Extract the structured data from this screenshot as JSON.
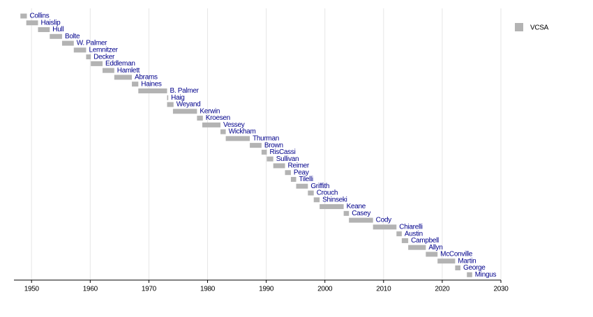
{
  "chart_data": {
    "type": "timeline",
    "categories": [
      "Collins",
      "Haislip",
      "Hull",
      "Bolte",
      "W. Palmer",
      "Lemnitzer",
      "Decker",
      "Eddleman",
      "Hamlett",
      "Abrams",
      "Haines",
      "B. Palmer",
      "Haig",
      "Weyand",
      "Kerwin",
      "Kroesen",
      "Vessey",
      "Wickham",
      "Thurman",
      "Brown",
      "RisCassi",
      "Sullivan",
      "Reimer",
      "Peay",
      "Tilelli",
      "Griffith",
      "Crouch",
      "Shinseki",
      "Keane",
      "Casey",
      "Cody",
      "Chiarelli",
      "Austin",
      "Campbell",
      "Allyn",
      "McConville",
      "Martin",
      "George",
      "Mingus"
    ],
    "series": [
      {
        "name": "VCSA",
        "color": "#b3b3b3",
        "values": [
          [
            1948.1,
            1949.2
          ],
          [
            1949.1,
            1951.1
          ],
          [
            1951.1,
            1953.1
          ],
          [
            1953.1,
            1955.2
          ],
          [
            1955.2,
            1957.2
          ],
          [
            1957.2,
            1959.3
          ],
          [
            1959.3,
            1960.1
          ],
          [
            1960.1,
            1962.1
          ],
          [
            1962.1,
            1964.1
          ],
          [
            1964.1,
            1967.1
          ],
          [
            1967.1,
            1968.2
          ],
          [
            1968.2,
            1973.1
          ],
          [
            1973.1,
            1973.3
          ],
          [
            1973.1,
            1974.2
          ],
          [
            1974.1,
            1978.2
          ],
          [
            1978.2,
            1979.2
          ],
          [
            1979.1,
            1982.2
          ],
          [
            1982.2,
            1983.1
          ],
          [
            1983.1,
            1987.2
          ],
          [
            1987.2,
            1989.2
          ],
          [
            1989.2,
            1990.1
          ],
          [
            1990.1,
            1991.2
          ],
          [
            1991.2,
            1993.2
          ],
          [
            1993.2,
            1994.2
          ],
          [
            1994.2,
            1995.1
          ],
          [
            1995.1,
            1997.1
          ],
          [
            1997.1,
            1998.1
          ],
          [
            1998.1,
            1999.1
          ],
          [
            1999.1,
            2003.2
          ],
          [
            2003.2,
            2004.1
          ],
          [
            2004.1,
            2008.2
          ],
          [
            2008.2,
            2012.2
          ],
          [
            2012.2,
            2013.1
          ],
          [
            2013.1,
            2014.2
          ],
          [
            2014.2,
            2017.2
          ],
          [
            2017.2,
            2019.2
          ],
          [
            2019.2,
            2022.2
          ],
          [
            2022.2,
            2023.1
          ],
          [
            2024.2,
            2025.1
          ]
        ]
      }
    ],
    "label_color": "#00008b",
    "xlim": [
      1947,
      2030
    ],
    "xticks": [
      1950,
      1960,
      1970,
      1980,
      1990,
      2000,
      2010,
      2020,
      2030
    ],
    "grid": true,
    "legend": "top-right"
  }
}
